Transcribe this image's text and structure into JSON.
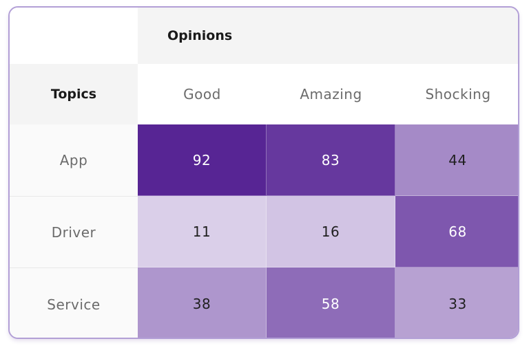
{
  "chart_data": {
    "type": "heatmap",
    "title": "",
    "column_group_label": "Opinions",
    "row_header_label": "Topics",
    "columns": [
      "Good",
      "Amazing",
      "Shocking"
    ],
    "rows": [
      "App",
      "Driver",
      "Service"
    ],
    "values": [
      [
        92,
        83,
        44
      ],
      [
        11,
        16,
        68
      ],
      [
        38,
        58,
        33
      ]
    ],
    "color_min": "#ece6f5",
    "color_max": "#4a148c",
    "value_range": [
      0,
      100
    ]
  }
}
